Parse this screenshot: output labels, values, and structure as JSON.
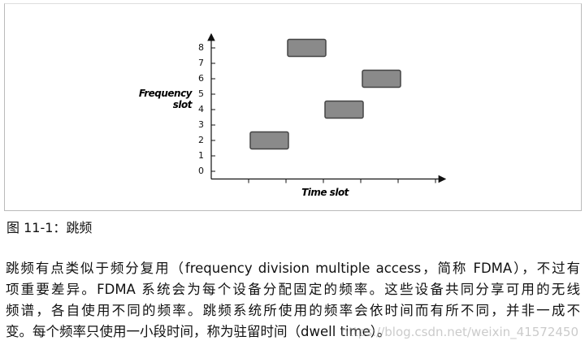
{
  "chart_data": {
    "type": "block",
    "ylabel": "Frequency slot",
    "xlabel": "Time slot",
    "x": [
      1,
      2,
      3,
      4
    ],
    "values": [
      2,
      8,
      4,
      6
    ],
    "color": "#8a8a8a",
    "xlim": [
      0,
      6
    ],
    "ylim": [
      -0.5,
      9
    ],
    "xticks": [
      1,
      2,
      3,
      4,
      5,
      6
    ],
    "yticks": [
      0,
      1,
      2,
      3,
      4,
      5,
      6,
      7,
      8
    ]
  },
  "caption": "图 11-1：跳频",
  "paragraph": [
    "跳频有点类似于频分复用（frequency division multiple access，简称 FDMA），不过有",
    "项重要差异。FDMA 系统会为每个设备分配固定的频率。这些设备共同分享可用的无线",
    "频谱，各自使用不同的频率。跳频系统所使用的频率会依时间而有所不同，并非一成不",
    "变。每个频率只使用一小段时间，称为驻留时间（dwell time）。"
  ],
  "watermark": "https://blog.csdn.net/weixin_41572450"
}
